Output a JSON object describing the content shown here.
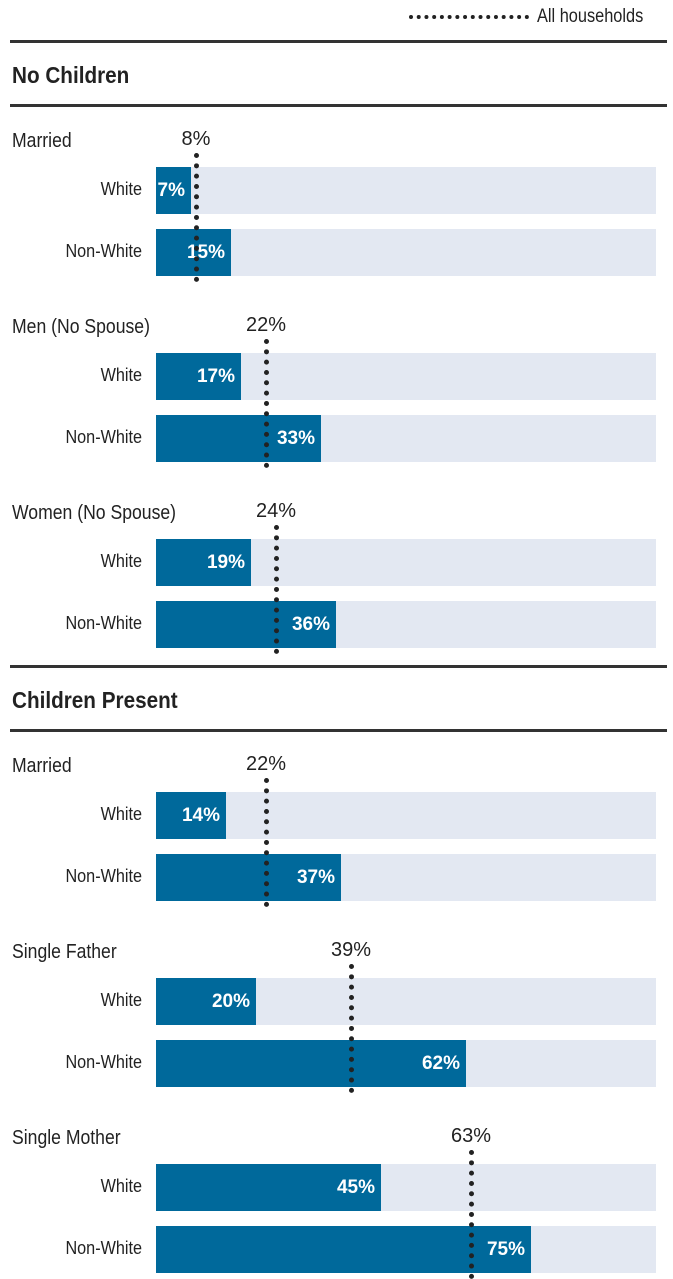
{
  "legend": {
    "label": "All households"
  },
  "colors": {
    "bar": "#00699b",
    "track": "#e3e8f2",
    "reference": "#222222"
  },
  "chart_data": {
    "type": "bar",
    "orientation": "horizontal",
    "xlim": [
      0,
      100
    ],
    "unit": "%",
    "reference_series": "All households",
    "sections": [
      {
        "title": "No Children",
        "groups": [
          {
            "label": "Married",
            "all_households": 8,
            "all_households_label": "8%",
            "rows": [
              {
                "category": "White",
                "value": 7,
                "label": "7%"
              },
              {
                "category": "Non-White",
                "value": 15,
                "label": "15%"
              }
            ]
          },
          {
            "label": "Men (No Spouse)",
            "all_households": 22,
            "all_households_label": "22%",
            "rows": [
              {
                "category": "White",
                "value": 17,
                "label": "17%"
              },
              {
                "category": "Non-White",
                "value": 33,
                "label": "33%"
              }
            ]
          },
          {
            "label": "Women (No Spouse)",
            "all_households": 24,
            "all_households_label": "24%",
            "rows": [
              {
                "category": "White",
                "value": 19,
                "label": "19%"
              },
              {
                "category": "Non-White",
                "value": 36,
                "label": "36%"
              }
            ]
          }
        ]
      },
      {
        "title": "Children Present",
        "groups": [
          {
            "label": "Married",
            "all_households": 22,
            "all_households_label": "22%",
            "rows": [
              {
                "category": "White",
                "value": 14,
                "label": "14%"
              },
              {
                "category": "Non-White",
                "value": 37,
                "label": "37%"
              }
            ]
          },
          {
            "label": "Single Father",
            "all_households": 39,
            "all_households_label": "39%",
            "rows": [
              {
                "category": "White",
                "value": 20,
                "label": "20%"
              },
              {
                "category": "Non-White",
                "value": 62,
                "label": "62%"
              }
            ]
          },
          {
            "label": "Single Mother",
            "all_households": 63,
            "all_households_label": "63%",
            "rows": [
              {
                "category": "White",
                "value": 45,
                "label": "45%"
              },
              {
                "category": "Non-White",
                "value": 75,
                "label": "75%"
              }
            ]
          }
        ]
      }
    ]
  }
}
